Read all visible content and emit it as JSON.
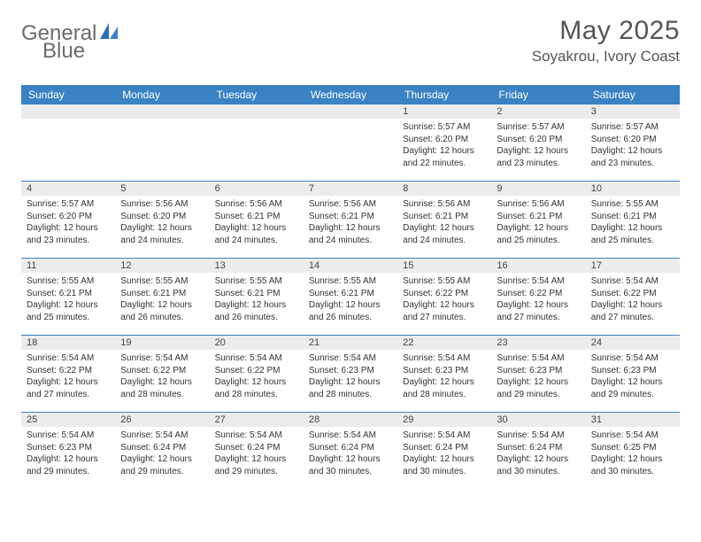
{
  "brand": {
    "word1": "General",
    "word2": "Blue"
  },
  "title": "May 2025",
  "location": "Soyakrou, Ivory Coast",
  "colors": {
    "header_bg": "#3b82c4",
    "header_text": "#ffffff",
    "daynum_bg": "#ececec",
    "week_border": "#3b82c4",
    "text": "#333333",
    "logo_gray": "#6b6b6b",
    "logo_blue": "#3b7fc4"
  },
  "dow": [
    "Sunday",
    "Monday",
    "Tuesday",
    "Wednesday",
    "Thursday",
    "Friday",
    "Saturday"
  ],
  "weeks": [
    [
      null,
      null,
      null,
      null,
      {
        "n": "1",
        "sr": "5:57 AM",
        "ss": "6:20 PM",
        "dl": "12 hours and 22 minutes."
      },
      {
        "n": "2",
        "sr": "5:57 AM",
        "ss": "6:20 PM",
        "dl": "12 hours and 23 minutes."
      },
      {
        "n": "3",
        "sr": "5:57 AM",
        "ss": "6:20 PM",
        "dl": "12 hours and 23 minutes."
      }
    ],
    [
      {
        "n": "4",
        "sr": "5:57 AM",
        "ss": "6:20 PM",
        "dl": "12 hours and 23 minutes."
      },
      {
        "n": "5",
        "sr": "5:56 AM",
        "ss": "6:20 PM",
        "dl": "12 hours and 24 minutes."
      },
      {
        "n": "6",
        "sr": "5:56 AM",
        "ss": "6:21 PM",
        "dl": "12 hours and 24 minutes."
      },
      {
        "n": "7",
        "sr": "5:56 AM",
        "ss": "6:21 PM",
        "dl": "12 hours and 24 minutes."
      },
      {
        "n": "8",
        "sr": "5:56 AM",
        "ss": "6:21 PM",
        "dl": "12 hours and 24 minutes."
      },
      {
        "n": "9",
        "sr": "5:56 AM",
        "ss": "6:21 PM",
        "dl": "12 hours and 25 minutes."
      },
      {
        "n": "10",
        "sr": "5:55 AM",
        "ss": "6:21 PM",
        "dl": "12 hours and 25 minutes."
      }
    ],
    [
      {
        "n": "11",
        "sr": "5:55 AM",
        "ss": "6:21 PM",
        "dl": "12 hours and 25 minutes."
      },
      {
        "n": "12",
        "sr": "5:55 AM",
        "ss": "6:21 PM",
        "dl": "12 hours and 26 minutes."
      },
      {
        "n": "13",
        "sr": "5:55 AM",
        "ss": "6:21 PM",
        "dl": "12 hours and 26 minutes."
      },
      {
        "n": "14",
        "sr": "5:55 AM",
        "ss": "6:21 PM",
        "dl": "12 hours and 26 minutes."
      },
      {
        "n": "15",
        "sr": "5:55 AM",
        "ss": "6:22 PM",
        "dl": "12 hours and 27 minutes."
      },
      {
        "n": "16",
        "sr": "5:54 AM",
        "ss": "6:22 PM",
        "dl": "12 hours and 27 minutes."
      },
      {
        "n": "17",
        "sr": "5:54 AM",
        "ss": "6:22 PM",
        "dl": "12 hours and 27 minutes."
      }
    ],
    [
      {
        "n": "18",
        "sr": "5:54 AM",
        "ss": "6:22 PM",
        "dl": "12 hours and 27 minutes."
      },
      {
        "n": "19",
        "sr": "5:54 AM",
        "ss": "6:22 PM",
        "dl": "12 hours and 28 minutes."
      },
      {
        "n": "20",
        "sr": "5:54 AM",
        "ss": "6:22 PM",
        "dl": "12 hours and 28 minutes."
      },
      {
        "n": "21",
        "sr": "5:54 AM",
        "ss": "6:23 PM",
        "dl": "12 hours and 28 minutes."
      },
      {
        "n": "22",
        "sr": "5:54 AM",
        "ss": "6:23 PM",
        "dl": "12 hours and 28 minutes."
      },
      {
        "n": "23",
        "sr": "5:54 AM",
        "ss": "6:23 PM",
        "dl": "12 hours and 29 minutes."
      },
      {
        "n": "24",
        "sr": "5:54 AM",
        "ss": "6:23 PM",
        "dl": "12 hours and 29 minutes."
      }
    ],
    [
      {
        "n": "25",
        "sr": "5:54 AM",
        "ss": "6:23 PM",
        "dl": "12 hours and 29 minutes."
      },
      {
        "n": "26",
        "sr": "5:54 AM",
        "ss": "6:24 PM",
        "dl": "12 hours and 29 minutes."
      },
      {
        "n": "27",
        "sr": "5:54 AM",
        "ss": "6:24 PM",
        "dl": "12 hours and 29 minutes."
      },
      {
        "n": "28",
        "sr": "5:54 AM",
        "ss": "6:24 PM",
        "dl": "12 hours and 30 minutes."
      },
      {
        "n": "29",
        "sr": "5:54 AM",
        "ss": "6:24 PM",
        "dl": "12 hours and 30 minutes."
      },
      {
        "n": "30",
        "sr": "5:54 AM",
        "ss": "6:24 PM",
        "dl": "12 hours and 30 minutes."
      },
      {
        "n": "31",
        "sr": "5:54 AM",
        "ss": "6:25 PM",
        "dl": "12 hours and 30 minutes."
      }
    ]
  ],
  "labels": {
    "sunrise": "Sunrise:",
    "sunset": "Sunset:",
    "daylight": "Daylight:"
  }
}
